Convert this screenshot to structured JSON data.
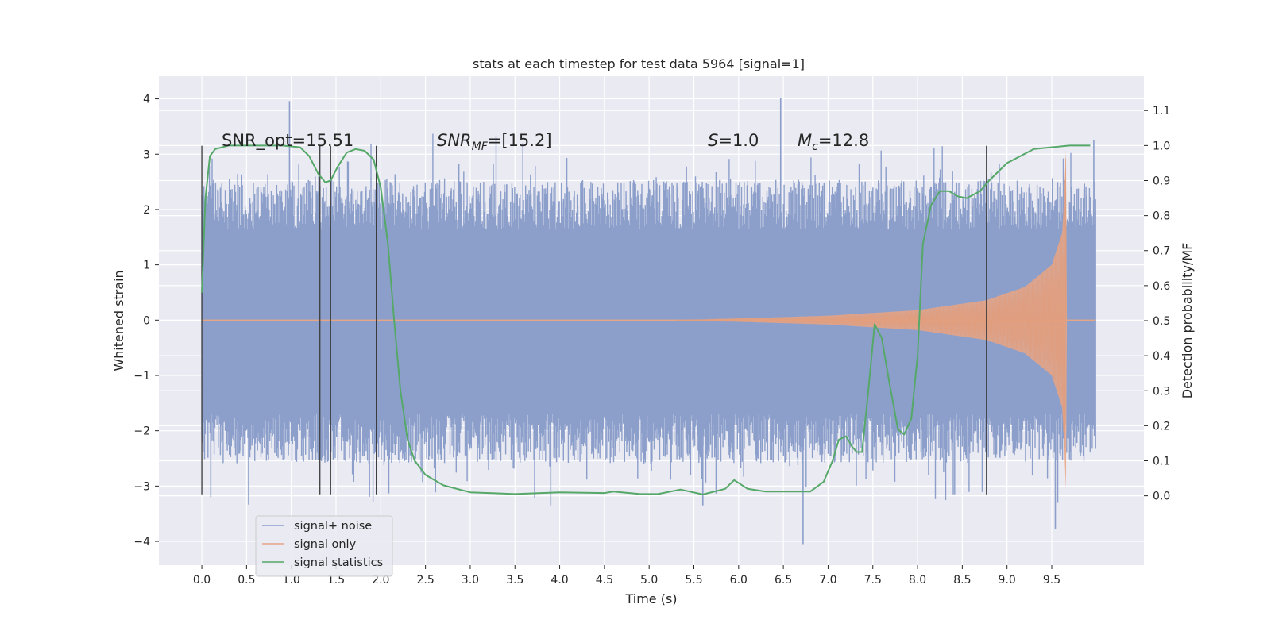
{
  "chart_data": {
    "type": "line",
    "title": "stats at each timestep for test data 5964 [signal=1]",
    "xlabel": "Time (s)",
    "ylabel": "Whitened strain",
    "y2label": "Detection probability/MF",
    "xlim": [
      -0.48,
      10.53
    ],
    "ylim": [
      -4.43,
      4.41
    ],
    "y2lim": [
      -0.198,
      1.198
    ],
    "x_ticks": [
      "0.0",
      "0.5",
      "1.0",
      "1.5",
      "2.0",
      "2.5",
      "3.0",
      "3.5",
      "4.0",
      "4.5",
      "5.0",
      "5.5",
      "6.0",
      "6.5",
      "7.0",
      "7.5",
      "8.0",
      "8.5",
      "9.0",
      "9.5"
    ],
    "y_ticks": [
      "4",
      "3",
      "2",
      "1",
      "0",
      "−1",
      "−2",
      "−3",
      "−4"
    ],
    "y2_ticks": [
      "1.1",
      "1.0",
      "0.9",
      "0.8",
      "0.7",
      "0.6",
      "0.5",
      "0.4",
      "0.3",
      "0.2",
      "0.1",
      "0.0"
    ],
    "grid": true,
    "legend_position": "lower-left",
    "colors": {
      "noise": "#8c9fcb",
      "signal": "#e8a585",
      "stats": "#55a868",
      "vline": "#3a3a3a",
      "background": "#eaeaf2"
    },
    "annotations": {
      "snr_opt": "SNR_opt=15.51",
      "snr_mf_main": "SNR",
      "snr_mf_sub": "MF",
      "snr_mf_value": "=[15.2]",
      "s_main": "S",
      "s_value": "=1.0",
      "mc_main": "M",
      "mc_sub": "c",
      "mc_value": "=12.8"
    },
    "vertical_lines_x": [
      0.0,
      1.32,
      1.44,
      1.95,
      8.77
    ],
    "series": [
      {
        "name": "signal+ noise",
        "kind": "noise-band",
        "x_range": [
          0.0,
          9.99
        ],
        "band_envelope": [
          -2.0,
          1.95
        ],
        "peak_spikes": [
          [
            0.98,
            3.96
          ],
          [
            6.47,
            4.02
          ],
          [
            9.97,
            3.25
          ],
          [
            6.72,
            -4.05
          ],
          [
            9.54,
            -3.77
          ],
          [
            3.9,
            -3.35
          ],
          [
            5.6,
            -3.35
          ],
          [
            0.1,
            -3.2
          ]
        ]
      },
      {
        "name": "signal only",
        "kind": "chirp",
        "x_range": [
          5.3,
          9.67
        ],
        "amplitude_points": [
          [
            5.3,
            0.0
          ],
          [
            6.0,
            0.03
          ],
          [
            7.0,
            0.08
          ],
          [
            8.0,
            0.18
          ],
          [
            8.77,
            0.36
          ],
          [
            9.2,
            0.6
          ],
          [
            9.5,
            1.0
          ],
          [
            9.62,
            1.6
          ],
          [
            9.66,
            3.1
          ]
        ]
      },
      {
        "name": "signal statistics",
        "kind": "line",
        "axis": "right",
        "points": [
          [
            0.0,
            0.58
          ],
          [
            0.04,
            0.85
          ],
          [
            0.09,
            0.97
          ],
          [
            0.15,
            0.99
          ],
          [
            0.3,
            1.0
          ],
          [
            0.6,
            1.0
          ],
          [
            0.9,
            1.0
          ],
          [
            1.1,
            0.995
          ],
          [
            1.2,
            0.97
          ],
          [
            1.3,
            0.92
          ],
          [
            1.38,
            0.895
          ],
          [
            1.44,
            0.9
          ],
          [
            1.52,
            0.94
          ],
          [
            1.62,
            0.98
          ],
          [
            1.72,
            0.99
          ],
          [
            1.82,
            0.985
          ],
          [
            1.92,
            0.96
          ],
          [
            2.0,
            0.88
          ],
          [
            2.08,
            0.72
          ],
          [
            2.15,
            0.5
          ],
          [
            2.22,
            0.3
          ],
          [
            2.3,
            0.16
          ],
          [
            2.38,
            0.1
          ],
          [
            2.5,
            0.06
          ],
          [
            2.7,
            0.03
          ],
          [
            3.0,
            0.01
          ],
          [
            3.5,
            0.005
          ],
          [
            4.0,
            0.01
          ],
          [
            4.5,
            0.008
          ],
          [
            4.6,
            0.012
          ],
          [
            4.9,
            0.005
          ],
          [
            5.1,
            0.005
          ],
          [
            5.35,
            0.018
          ],
          [
            5.6,
            0.004
          ],
          [
            5.85,
            0.02
          ],
          [
            5.95,
            0.045
          ],
          [
            6.1,
            0.02
          ],
          [
            6.3,
            0.012
          ],
          [
            6.8,
            0.012
          ],
          [
            6.95,
            0.04
          ],
          [
            7.05,
            0.1
          ],
          [
            7.12,
            0.16
          ],
          [
            7.2,
            0.17
          ],
          [
            7.27,
            0.14
          ],
          [
            7.32,
            0.125
          ],
          [
            7.38,
            0.125
          ],
          [
            7.45,
            0.3
          ],
          [
            7.52,
            0.49
          ],
          [
            7.6,
            0.45
          ],
          [
            7.68,
            0.33
          ],
          [
            7.78,
            0.19
          ],
          [
            7.85,
            0.175
          ],
          [
            7.93,
            0.22
          ],
          [
            8.0,
            0.4
          ],
          [
            8.06,
            0.72
          ],
          [
            8.15,
            0.83
          ],
          [
            8.25,
            0.87
          ],
          [
            8.35,
            0.87
          ],
          [
            8.45,
            0.855
          ],
          [
            8.55,
            0.85
          ],
          [
            8.7,
            0.87
          ],
          [
            8.8,
            0.9
          ],
          [
            9.0,
            0.95
          ],
          [
            9.3,
            0.99
          ],
          [
            9.7,
            1.0
          ],
          [
            9.93,
            1.0
          ]
        ]
      }
    ]
  }
}
